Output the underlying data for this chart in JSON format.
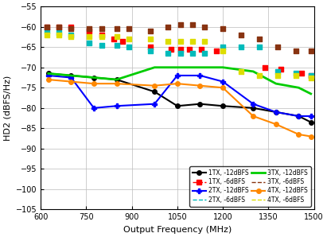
{
  "xlabel": "Output Frequency (MHz)",
  "ylabel": "HD2 (dBFS/Hz)",
  "xlim": [
    600,
    1500
  ],
  "ylim": [
    -105,
    -55
  ],
  "yticks": [
    -105,
    -100,
    -95,
    -90,
    -85,
    -80,
    -75,
    -70,
    -65,
    -60,
    -55
  ],
  "xticks": [
    600,
    750,
    900,
    1050,
    1200,
    1350,
    1500
  ],
  "series": [
    {
      "label": "1TX, -12dBFS",
      "color": "#000000",
      "linestyle": "-",
      "marker": "o",
      "markersize": 4,
      "linewidth": 1.5,
      "scatter": false,
      "x": [
        625,
        700,
        775,
        850,
        975,
        1050,
        1125,
        1200,
        1300,
        1375,
        1450,
        1490
      ],
      "y": [
        -71.5,
        -72,
        -72.5,
        -73,
        -76,
        -79.5,
        -79,
        -79.5,
        -80,
        -81,
        -82,
        -83.5
      ]
    },
    {
      "label": "1TX, -6dBFS",
      "color": "#FF0000",
      "linestyle": "--",
      "marker": "s",
      "markersize": 4,
      "linewidth": 1.0,
      "scatter": true,
      "x": [
        620,
        660,
        700,
        760,
        800,
        840,
        870,
        960,
        1030,
        1060,
        1090,
        1130,
        1180,
        1340,
        1390,
        1460,
        1490
      ],
      "y": [
        -60,
        -60,
        -60,
        -61,
        -62,
        -63,
        -63.5,
        -65,
        -65.5,
        -65.5,
        -65.5,
        -65.5,
        -66,
        -70,
        -70.5,
        -71.5,
        -72
      ]
    },
    {
      "label": "2TX, -12dBFS",
      "color": "#0000FF",
      "linestyle": "-",
      "marker": "P",
      "markersize": 4,
      "linewidth": 1.5,
      "scatter": false,
      "x": [
        625,
        700,
        775,
        850,
        975,
        1050,
        1125,
        1200,
        1300,
        1375,
        1450,
        1490
      ],
      "y": [
        -72,
        -72.5,
        -80,
        -79.5,
        -79,
        -72,
        -72,
        -73.5,
        -79,
        -81,
        -82,
        -82
      ]
    },
    {
      "label": "2TX, -6dBFS",
      "color": "#00BBBB",
      "linestyle": "--",
      "marker": "s",
      "markersize": 3,
      "linewidth": 1.0,
      "scatter": true,
      "x": [
        620,
        660,
        700,
        760,
        800,
        850,
        890,
        960,
        1020,
        1060,
        1100,
        1140,
        1200,
        1260,
        1320,
        1380,
        1440,
        1490
      ],
      "y": [
        -61,
        -61.5,
        -62,
        -64,
        -64.5,
        -64.5,
        -65,
        -66,
        -66.5,
        -66.5,
        -66.5,
        -66.5,
        -65,
        -65,
        -65,
        -71,
        -71.5,
        -72
      ]
    },
    {
      "label": "3TX, -12dBFS",
      "color": "#00CC00",
      "linestyle": "-",
      "marker": null,
      "markersize": 0,
      "linewidth": 2.0,
      "scatter": false,
      "x": [
        625,
        700,
        775,
        850,
        975,
        1050,
        1125,
        1200,
        1300,
        1375,
        1450,
        1490
      ],
      "y": [
        -71.5,
        -72,
        -72.5,
        -73,
        -70,
        -70,
        -70,
        -70,
        -71,
        -74,
        -75,
        -76.5
      ]
    },
    {
      "label": "3TX, -6dBFS",
      "color": "#883311",
      "linestyle": "--",
      "marker": "s",
      "markersize": 3,
      "linewidth": 1.0,
      "scatter": true,
      "x": [
        620,
        660,
        700,
        760,
        800,
        850,
        890,
        960,
        1020,
        1060,
        1100,
        1140,
        1200,
        1260,
        1320,
        1380,
        1440,
        1490
      ],
      "y": [
        -60,
        -60,
        -60.5,
        -60.5,
        -60.5,
        -60.5,
        -60.5,
        -61,
        -60,
        -59.5,
        -59.5,
        -60,
        -60.5,
        -62,
        -63,
        -65,
        -66,
        -66
      ]
    },
    {
      "label": "4TX, -12dBFS",
      "color": "#FF8800",
      "linestyle": "-",
      "marker": "o",
      "markersize": 4,
      "linewidth": 1.5,
      "scatter": false,
      "x": [
        625,
        700,
        775,
        850,
        975,
        1050,
        1125,
        1200,
        1300,
        1375,
        1450,
        1490
      ],
      "y": [
        -73,
        -73.5,
        -74,
        -74,
        -74.5,
        -74,
        -74.5,
        -75,
        -82,
        -84,
        -86.5,
        -87
      ]
    },
    {
      "label": "4TX, -6dBFS",
      "color": "#DDDD00",
      "linestyle": "--",
      "marker": "s",
      "markersize": 3,
      "linewidth": 1.0,
      "scatter": true,
      "x": [
        620,
        660,
        700,
        760,
        800,
        850,
        890,
        960,
        1020,
        1060,
        1100,
        1140,
        1200,
        1260,
        1320,
        1380,
        1440,
        1490
      ],
      "y": [
        -62,
        -62,
        -62.5,
        -62.5,
        -62.5,
        -62.5,
        -63,
        -63,
        -63.5,
        -63.5,
        -63.5,
        -63.5,
        -66,
        -71,
        -72,
        -72,
        -72,
        -72.5
      ]
    }
  ],
  "legend": [
    {
      "label": "1TX, -12dBFS",
      "color": "#000000",
      "ls": "-",
      "marker": "o",
      "lw": 1.5
    },
    {
      "label": "1TX, -6dBFS",
      "color": "#FF0000",
      "ls": "--",
      "marker": "s",
      "lw": 1.0
    },
    {
      "label": "2TX, -12dBFS",
      "color": "#0000FF",
      "ls": "-",
      "marker": "P",
      "lw": 1.5
    },
    {
      "label": "2TX, -6dBFS",
      "color": "#00BBBB",
      "ls": "--",
      "marker": null,
      "lw": 1.0
    },
    {
      "label": "3TX, -12dBFS",
      "color": "#00CC00",
      "ls": "-",
      "marker": null,
      "lw": 2.0
    },
    {
      "label": "3TX, -6dBFS",
      "color": "#883311",
      "ls": "--",
      "marker": null,
      "lw": 1.0
    },
    {
      "label": "4TX, -12dBFS",
      "color": "#FF8800",
      "ls": "-",
      "marker": "o",
      "lw": 1.5
    },
    {
      "label": "4TX, -6dBFS",
      "color": "#DDDD00",
      "ls": "--",
      "marker": null,
      "lw": 1.0
    }
  ]
}
